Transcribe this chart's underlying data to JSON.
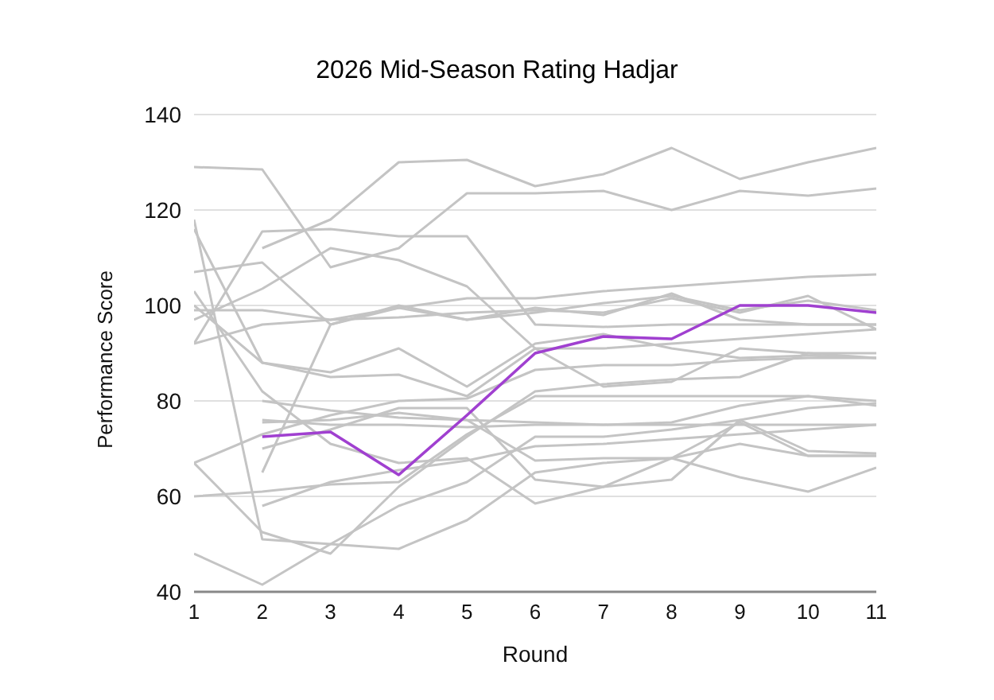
{
  "chart_data": {
    "type": "line",
    "title": "2026 Mid-Season Rating Hadjar",
    "xlabel": "Round",
    "ylabel": "Performance Score",
    "x": [
      1,
      2,
      3,
      4,
      5,
      6,
      7,
      8,
      9,
      10,
      11
    ],
    "xlim": [
      1,
      11
    ],
    "xticks": [
      1,
      2,
      3,
      4,
      5,
      6,
      7,
      8,
      9,
      10,
      11
    ],
    "ylim": [
      40,
      140
    ],
    "yticks": [
      40,
      60,
      80,
      100,
      120,
      140
    ],
    "grid": "y",
    "legend": false,
    "marker": "none",
    "line_style": "solid",
    "series": [
      {
        "color": "#c4c4c4",
        "values": [
          129,
          128.5,
          108,
          112,
          123.5,
          123.5,
          124,
          120,
          124,
          123,
          124.5
        ]
      },
      {
        "color": "#c4c4c4",
        "values": [
          null,
          112,
          118,
          130,
          130.5,
          125,
          127.5,
          133,
          126.5,
          130,
          133
        ]
      },
      {
        "color": "#c4c4c4",
        "values": [
          92,
          115.5,
          116,
          114.5,
          114.5,
          96,
          95.5,
          96,
          96,
          96,
          96
        ]
      },
      {
        "color": "#c4c4c4",
        "values": [
          107,
          109,
          96,
          100,
          97,
          99.5,
          98,
          102.5,
          97,
          96,
          96
        ]
      },
      {
        "color": "#c4c4c4",
        "values": [
          97,
          103.5,
          112,
          109.5,
          104,
          91,
          83,
          84,
          91,
          90,
          89
        ]
      },
      {
        "color": "#c4c4c4",
        "values": [
          118,
          51,
          50,
          49,
          55,
          65,
          67,
          68,
          75.5,
          68.5,
          68.5
        ]
      },
      {
        "color": "#c4c4c4",
        "values": [
          116,
          88,
          86,
          91,
          83,
          92,
          94,
          91,
          89,
          89.5,
          89
        ]
      },
      {
        "color": "#c4c4c4",
        "values": [
          103,
          82,
          71,
          67,
          68,
          58.5,
          62,
          68,
          64,
          61,
          66
        ]
      },
      {
        "color": "#c4c4c4",
        "values": [
          100,
          88,
          85,
          85.5,
          81,
          91,
          91,
          92,
          93,
          94,
          95
        ]
      },
      {
        "color": "#c4c4c4",
        "values": [
          67,
          52.5,
          48,
          62,
          72.5,
          82,
          83.5,
          84.5,
          85,
          90,
          90
        ]
      },
      {
        "color": "#c4c4c4",
        "values": [
          48,
          41.5,
          50,
          58,
          63,
          72.5,
          72.5,
          74,
          76,
          78.5,
          79.5
        ]
      },
      {
        "color": "#c4c4c4",
        "values": [
          60,
          61,
          62.5,
          63,
          73,
          81,
          81,
          81,
          81,
          81,
          80
        ]
      },
      {
        "color": "#c4c4c4",
        "values": [
          67,
          73,
          77,
          80,
          80.5,
          86.5,
          87.5,
          87.5,
          88.5,
          89,
          89
        ]
      },
      {
        "color": "#c4c4c4",
        "values": [
          92,
          96,
          97,
          99.5,
          101.5,
          101.5,
          103,
          104,
          105,
          106,
          106.5
        ]
      },
      {
        "color": "#c4c4c4",
        "values": [
          99,
          99,
          97,
          97.5,
          98.5,
          99,
          98.5,
          101.5,
          98.5,
          102,
          95
        ]
      },
      {
        "color": "#c4c4c4",
        "values": [
          null,
          65,
          96,
          99.5,
          97,
          98.5,
          100.5,
          102,
          99,
          101,
          99
        ]
      },
      {
        "color": "#c4c4c4",
        "values": [
          null,
          58,
          63,
          65.5,
          67.5,
          70.5,
          71,
          72,
          73,
          74,
          75
        ]
      },
      {
        "color": "#c4c4c4",
        "values": [
          null,
          75.5,
          76,
          77.5,
          76,
          75.5,
          75,
          75.5,
          79,
          81,
          79
        ]
      },
      {
        "color": "#c4c4c4",
        "values": [
          null,
          76,
          75,
          75,
          74.5,
          75,
          75,
          75,
          75,
          75,
          75
        ]
      },
      {
        "color": "#c4c4c4",
        "values": [
          null,
          80,
          78,
          76.5,
          76,
          67.5,
          68,
          68,
          71,
          68.5,
          68.5
        ]
      },
      {
        "color": "#c4c4c4",
        "values": [
          null,
          70,
          74,
          78.5,
          78.5,
          63.5,
          62,
          63.5,
          76,
          69.5,
          69
        ]
      },
      {
        "color": "#a040d0",
        "values": [
          null,
          72.5,
          73.5,
          64.5,
          77,
          90,
          93.5,
          93,
          100,
          100,
          98.5
        ]
      }
    ]
  }
}
